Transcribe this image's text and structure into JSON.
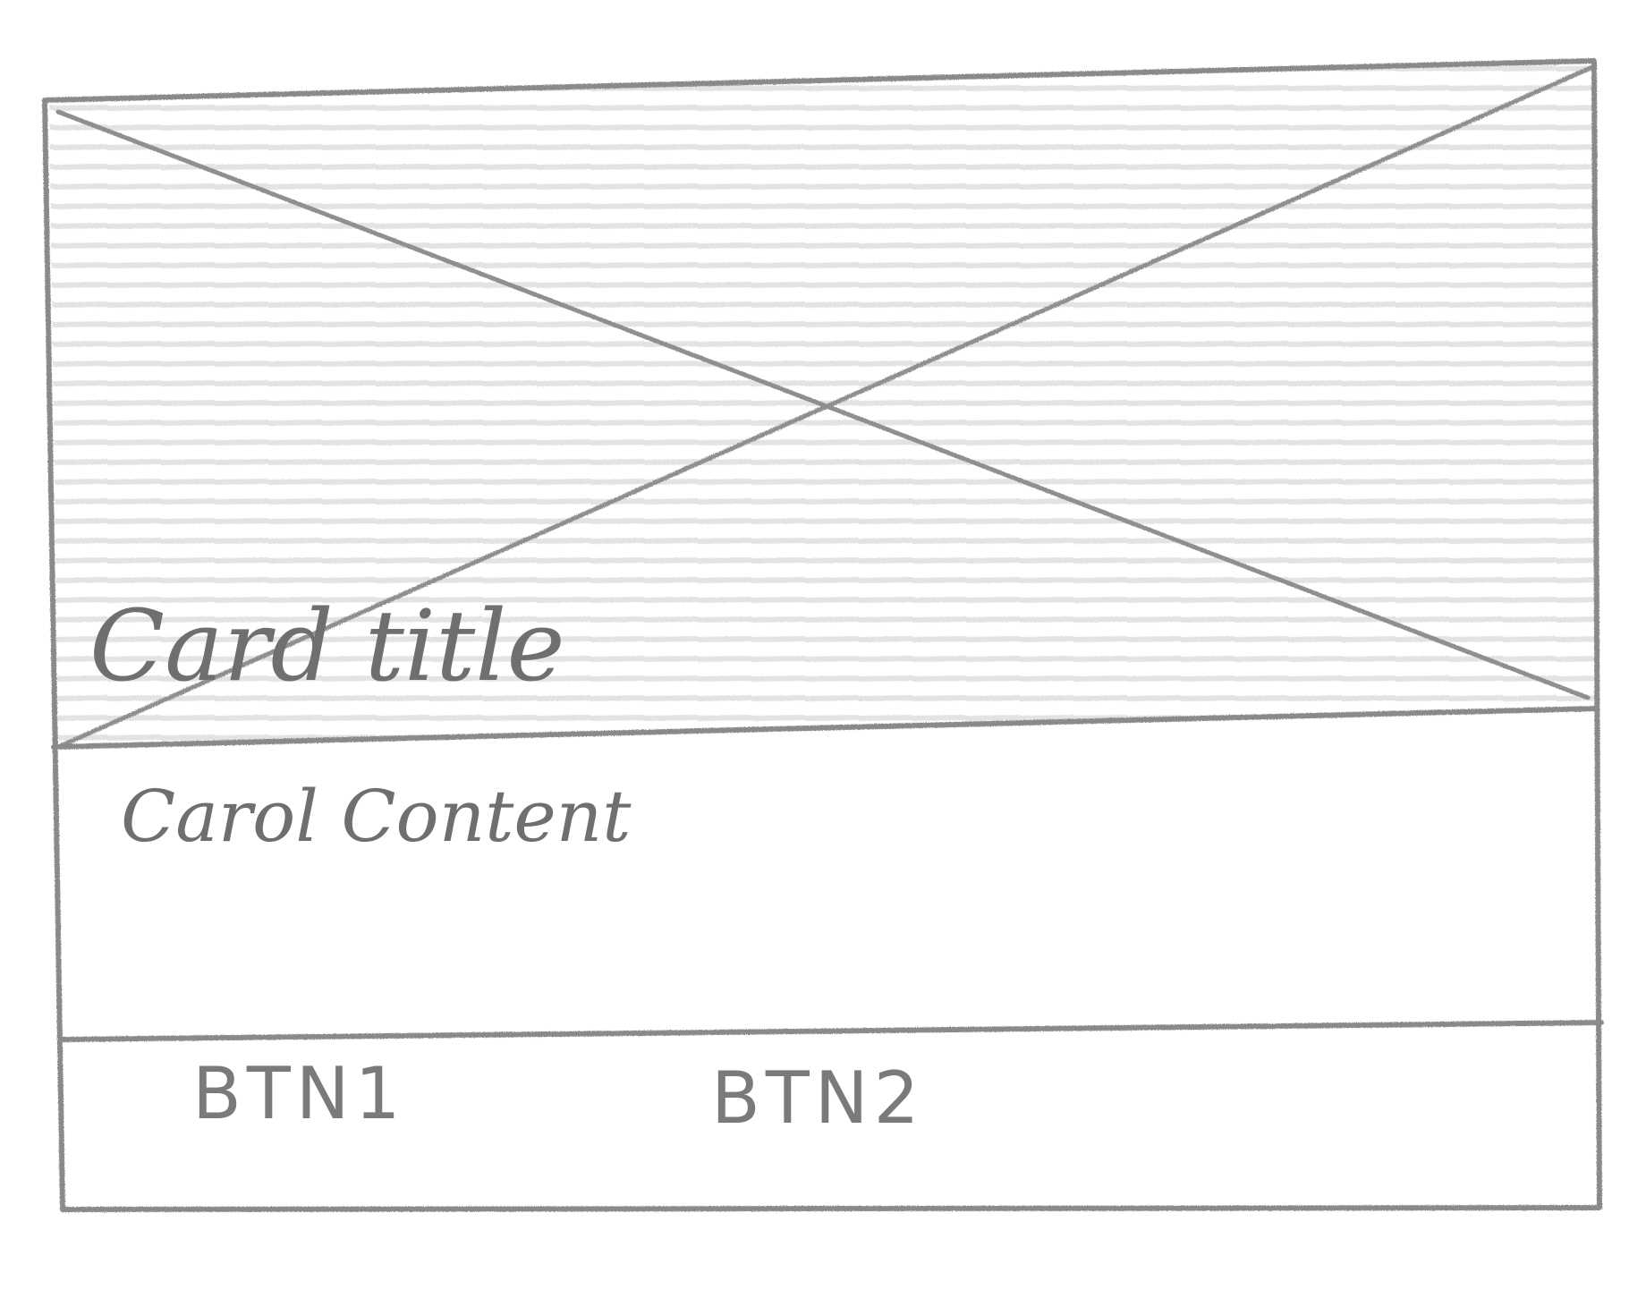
{
  "card": {
    "title": "Card title",
    "content": "Carol Content",
    "image_placeholder_icon": "image-placeholder-x-icon",
    "buttons": [
      {
        "label": "BTN1"
      },
      {
        "label": "BTN2"
      }
    ]
  },
  "colors": {
    "pencil": "#8a8a8a",
    "shading": "#e6e6e6",
    "paper": "#ffffff"
  }
}
